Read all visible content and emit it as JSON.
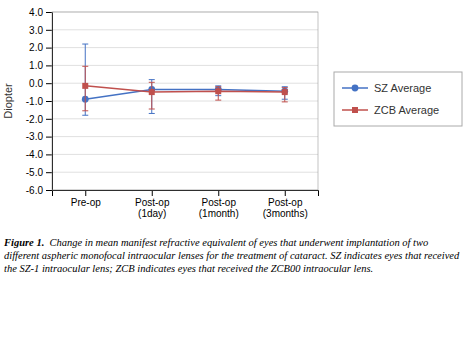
{
  "chart_data": {
    "type": "line",
    "categories": [
      "Pre-op",
      "Post-op\n(1day)",
      "Post-op\n(1month)",
      "Post-op\n(3months)"
    ],
    "series": [
      {
        "name": "SZ Average",
        "color": "#4472C4",
        "marker": "circle",
        "values": [
          -0.9,
          -0.35,
          -0.35,
          -0.45
        ],
        "errors_upper": [
          3.1,
          0.55,
          0.2,
          0.25
        ],
        "errors_lower": [
          0.9,
          1.35,
          0.35,
          0.45
        ]
      },
      {
        "name": "ZCB Average",
        "color": "#C0504D",
        "marker": "square",
        "values": [
          -0.15,
          -0.5,
          -0.45,
          -0.5
        ],
        "errors_upper": [
          1.1,
          0.55,
          0.25,
          0.25
        ],
        "errors_lower": [
          1.4,
          0.95,
          0.5,
          0.55
        ]
      }
    ],
    "ylabel": "Diopter",
    "ylim": [
      -6.0,
      4.0
    ],
    "yticks": [
      {
        "value": -6.0,
        "label": "-6.0"
      },
      {
        "value": -5.0,
        "label": "-5.0"
      },
      {
        "value": -4.0,
        "label": "-4.0"
      },
      {
        "value": -3.0,
        "label": "-3.0"
      },
      {
        "value": -2.0,
        "label": "-2.0"
      },
      {
        "value": -1.0,
        "label": "-1.0"
      },
      {
        "value": 0.0,
        "label": "0.0"
      },
      {
        "value": 1.0,
        "label": "1.0"
      },
      {
        "value": 2.0,
        "label": "2.0"
      },
      {
        "value": 3.0,
        "label": "3.0"
      },
      {
        "value": 4.0,
        "label": "4.0"
      }
    ],
    "grid": true,
    "legend": "right",
    "annotations": [
      "Figure 1.",
      "  Change in mean manifest refractive equivalent of eyes that underwent implantation of two different aspheric monofocal intraocular lenses for the treatment of cataract. SZ indicates eyes that received the SZ-1 intraocular lens; ZCB indicates eyes that received the ZCB00 intraocular lens."
    ]
  }
}
